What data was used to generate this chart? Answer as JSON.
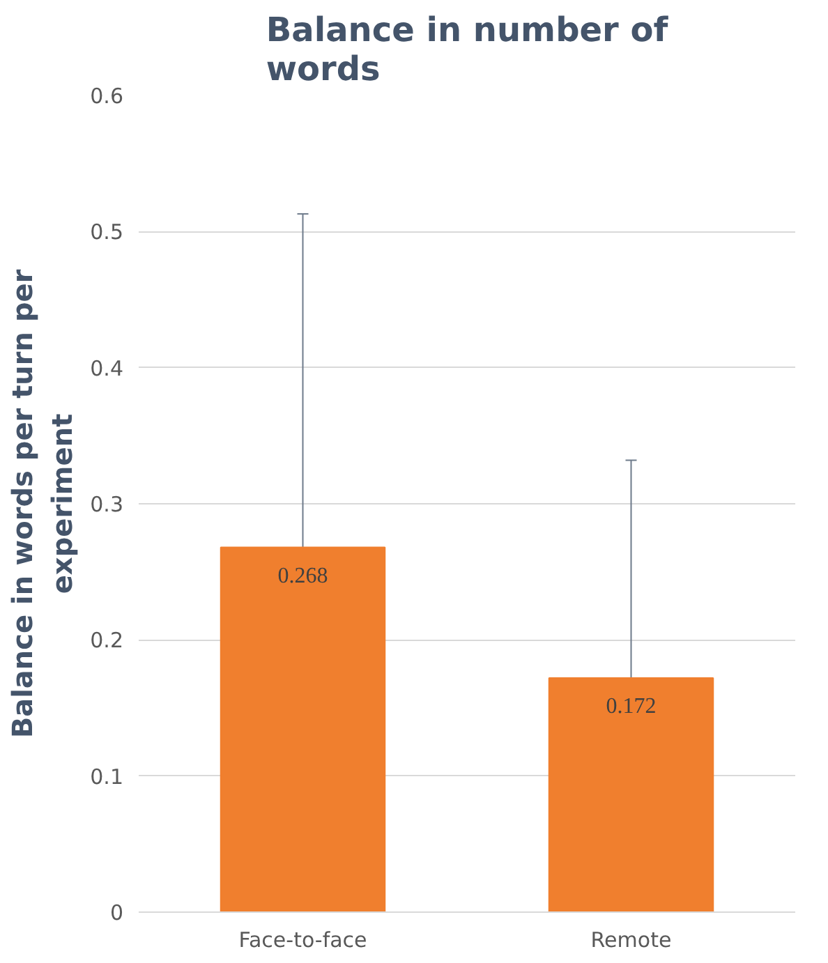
{
  "chart_data": {
    "type": "bar",
    "title": "Balance in number of\nwords",
    "ylabel": "Balance in words per turn per\nexperiment",
    "categories": [
      "Face-to-face",
      "Remote"
    ],
    "values": [
      0.268,
      0.172
    ],
    "errors": [
      0.245,
      0.16
    ],
    "color": "#f07f2e",
    "ylim": [
      0,
      0.6
    ],
    "yticks": [
      0,
      0.1,
      0.2,
      0.3,
      0.4,
      0.5,
      0.6
    ],
    "grid": "y",
    "data_labels": true
  }
}
